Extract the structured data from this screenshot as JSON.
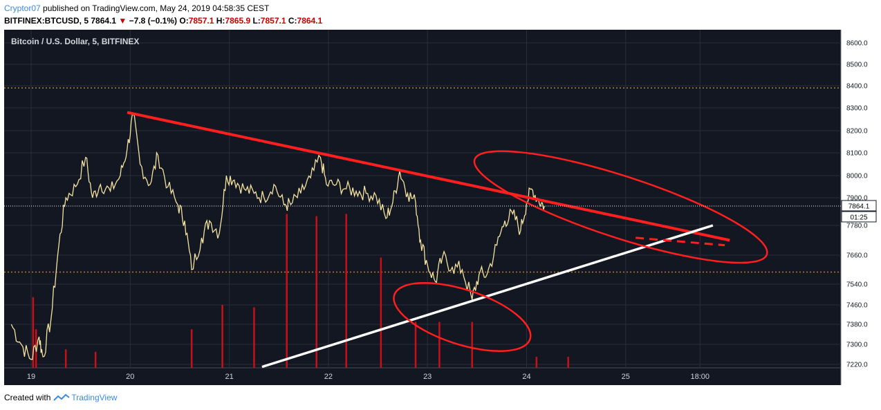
{
  "header": {
    "author": "Cryptor07",
    "published_text": " published on TradingView.com, May 24, 2019 04:58:35 CEST",
    "symbol": "BITFINEX:BTCUSD, 5",
    "last": "7864.1",
    "change": "−7.8 (−0.1%)",
    "o_label": "O:",
    "o_value": "7857.1",
    "h_label": "H:",
    "h_value": "7865.9",
    "l_label": "L:",
    "l_value": "7857.1",
    "c_label": "C:",
    "c_value": "7864.1"
  },
  "chart_title": "Bitcoin / U.S. Dollar, 5, BITFINEX",
  "price_tag": "7864.1",
  "countdown": "01:25",
  "footer": {
    "created_with": "Created with",
    "brand": "TradingView"
  },
  "colors": {
    "background": "#131722",
    "grid": "#2a2e39",
    "candle": "#f5e3a0",
    "trendline": "#ff1f1f",
    "support": "#ffffff",
    "volume": "#c8101a",
    "level": "#b8860b",
    "brand": "#3a8be0"
  },
  "chart_data": {
    "type": "line",
    "series": [
      {
        "values": [
          [
            18.8,
            7380
          ],
          [
            18.9,
            7300
          ],
          [
            19.0,
            7240
          ],
          [
            19.08,
            7330
          ],
          [
            19.12,
            7250
          ],
          [
            19.2,
            7400
          ],
          [
            19.28,
            7700
          ],
          [
            19.35,
            7900
          ],
          [
            19.45,
            7950
          ],
          [
            19.55,
            8080
          ],
          [
            19.62,
            7900
          ],
          [
            19.7,
            7960
          ],
          [
            19.8,
            7930
          ],
          [
            19.9,
            8000
          ],
          [
            19.97,
            8120
          ],
          [
            20.03,
            8270
          ],
          [
            20.1,
            8050
          ],
          [
            20.2,
            7960
          ],
          [
            20.28,
            8090
          ],
          [
            20.38,
            7950
          ],
          [
            20.48,
            7870
          ],
          [
            20.55,
            7800
          ],
          [
            20.62,
            7600
          ],
          [
            20.72,
            7730
          ],
          [
            20.8,
            7800
          ],
          [
            20.9,
            7750
          ],
          [
            20.97,
            8000
          ],
          [
            21.05,
            7980
          ],
          [
            21.15,
            7940
          ],
          [
            21.25,
            7920
          ],
          [
            21.35,
            7900
          ],
          [
            21.45,
            7960
          ],
          [
            21.55,
            7870
          ],
          [
            21.62,
            7870
          ],
          [
            21.72,
            7920
          ],
          [
            21.82,
            7990
          ],
          [
            21.92,
            8080
          ],
          [
            21.98,
            7960
          ],
          [
            22.08,
            7960
          ],
          [
            22.18,
            7940
          ],
          [
            22.28,
            7930
          ],
          [
            22.38,
            7920
          ],
          [
            22.48,
            7910
          ],
          [
            22.58,
            7810
          ],
          [
            22.65,
            7880
          ],
          [
            22.72,
            8020
          ],
          [
            22.8,
            7920
          ],
          [
            22.88,
            7880
          ],
          [
            22.93,
            7720
          ],
          [
            23.0,
            7620
          ],
          [
            23.08,
            7550
          ],
          [
            23.15,
            7650
          ],
          [
            23.25,
            7610
          ],
          [
            23.35,
            7600
          ],
          [
            23.45,
            7480
          ],
          [
            23.52,
            7580
          ],
          [
            23.6,
            7580
          ],
          [
            23.7,
            7700
          ],
          [
            23.78,
            7800
          ],
          [
            23.86,
            7830
          ],
          [
            23.94,
            7760
          ],
          [
            24.0,
            7880
          ],
          [
            24.05,
            7940
          ],
          [
            24.12,
            7890
          ],
          [
            24.18,
            7864
          ]
        ]
      }
    ],
    "volume": [
      [
        19.02,
        7490
      ],
      [
        19.05,
        7360
      ],
      [
        19.35,
        7280
      ],
      [
        19.65,
        7270
      ],
      [
        20.62,
        7360
      ],
      [
        20.93,
        7460
      ],
      [
        21.25,
        7450
      ],
      [
        21.58,
        7830
      ],
      [
        21.88,
        7820
      ],
      [
        22.18,
        7830
      ],
      [
        22.53,
        7650
      ],
      [
        22.88,
        7390
      ],
      [
        23.12,
        7390
      ],
      [
        23.45,
        7390
      ],
      [
        24.1,
        7250
      ],
      [
        24.42,
        7250
      ]
    ],
    "trendlines": [
      {
        "points": [
          [
            19.97,
            8280
          ],
          [
            26.05,
            7720
          ]
        ],
        "style": "solid"
      },
      {
        "points": [
          [
            21.33,
            7210
          ],
          [
            25.88,
            7780
          ]
        ],
        "style": "support"
      },
      {
        "points": [
          [
            25.1,
            7730
          ],
          [
            26.0,
            7700
          ]
        ],
        "style": "dashed"
      }
    ],
    "ellipses": [
      {
        "center": [
          23.35,
          7410
        ],
        "rx_days": 0.72,
        "ry_price": 110,
        "rotation_deg": 18
      },
      {
        "center": [
          24.95,
          7860
        ],
        "rx_days": 1.55,
        "ry_price": 130,
        "rotation_deg": 18
      }
    ],
    "levels": [
      8390,
      7590
    ],
    "current_price": 7864.1,
    "x_ticks": [
      {
        "value": 19,
        "label": "19"
      },
      {
        "value": 20,
        "label": "20"
      },
      {
        "value": 21,
        "label": "21"
      },
      {
        "value": 22,
        "label": "22"
      },
      {
        "value": 23,
        "label": "23"
      },
      {
        "value": 24,
        "label": "24"
      },
      {
        "value": 25,
        "label": "25"
      },
      {
        "value": 25.75,
        "label": "18:00"
      }
    ],
    "y_ticks": [
      {
        "value": 8600,
        "label": "8600.0"
      },
      {
        "value": 8500,
        "label": "8500.0"
      },
      {
        "value": 8400,
        "label": "8400.0"
      },
      {
        "value": 8300,
        "label": "8300.0"
      },
      {
        "value": 8200,
        "label": "8200.0"
      },
      {
        "value": 8100,
        "label": "8100.0"
      },
      {
        "value": 8000,
        "label": "8000.0"
      },
      {
        "value": 7900,
        "label": "7900.0"
      },
      {
        "value": 7780,
        "label": "7780.0"
      },
      {
        "value": 7660,
        "label": "7660.0"
      },
      {
        "value": 7540,
        "label": "7540.0"
      },
      {
        "value": 7460,
        "label": "7460.0"
      },
      {
        "value": 7380,
        "label": "7380.0"
      },
      {
        "value": 7300,
        "label": "7300.0"
      },
      {
        "value": 7220,
        "label": "7220.0"
      }
    ]
  }
}
